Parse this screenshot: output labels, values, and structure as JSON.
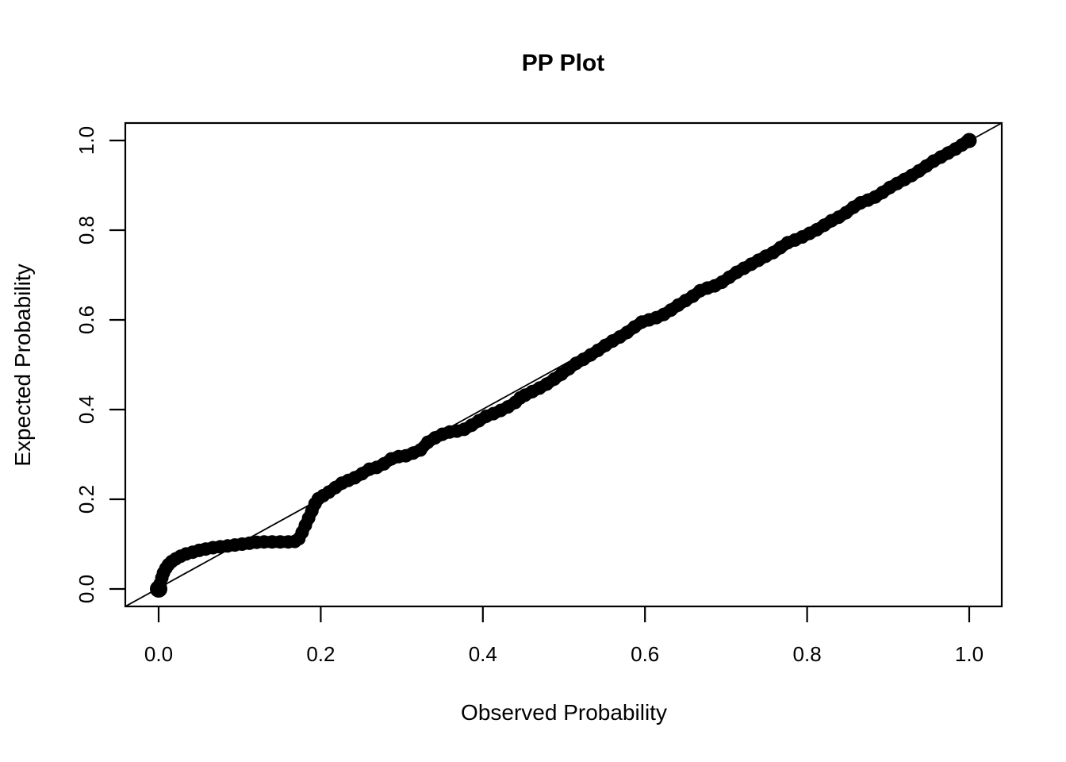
{
  "title": "PP Plot",
  "colors": {
    "foreground": "#000000",
    "background": "#ffffff",
    "point_color": "#000000",
    "reference_line_color": "#000000"
  },
  "chart_data": {
    "type": "scatter",
    "title": "PP Plot",
    "xlabel": "Observed Probability",
    "ylabel": "Expected Probability",
    "xlim": [
      -0.04,
      1.04
    ],
    "ylim": [
      -0.04,
      1.04
    ],
    "grid": false,
    "legend": "none",
    "marker": "filled-circle",
    "x_ticks": [
      0.0,
      0.2,
      0.4,
      0.6,
      0.8,
      1.0
    ],
    "y_ticks": [
      0.0,
      0.2,
      0.4,
      0.6,
      0.8,
      1.0
    ],
    "x_tick_labels": [
      "0.0",
      "0.2",
      "0.4",
      "0.6",
      "0.8",
      "1.0"
    ],
    "y_tick_labels": [
      "0.0",
      "0.2",
      "0.4",
      "0.6",
      "0.8",
      "1.0"
    ],
    "reference_line": {
      "type": "identity",
      "from": [
        0,
        0
      ],
      "to": [
        1,
        1
      ]
    },
    "series": [
      {
        "name": "pp-points",
        "color": "#000000",
        "points": [
          [
            0.0,
            0.0
          ],
          [
            0.002,
            0.012
          ],
          [
            0.004,
            0.025
          ],
          [
            0.006,
            0.036
          ],
          [
            0.009,
            0.046
          ],
          [
            0.012,
            0.054
          ],
          [
            0.016,
            0.061
          ],
          [
            0.021,
            0.067
          ],
          [
            0.027,
            0.073
          ],
          [
            0.034,
            0.078
          ],
          [
            0.042,
            0.082
          ],
          [
            0.05,
            0.086
          ],
          [
            0.058,
            0.089
          ],
          [
            0.067,
            0.092
          ],
          [
            0.076,
            0.094
          ],
          [
            0.085,
            0.096
          ],
          [
            0.094,
            0.098
          ],
          [
            0.103,
            0.1
          ],
          [
            0.112,
            0.102
          ],
          [
            0.121,
            0.104
          ],
          [
            0.13,
            0.105
          ],
          [
            0.14,
            0.105
          ],
          [
            0.15,
            0.105
          ],
          [
            0.16,
            0.105
          ],
          [
            0.168,
            0.106
          ],
          [
            0.173,
            0.112
          ],
          [
            0.177,
            0.126
          ],
          [
            0.181,
            0.142
          ],
          [
            0.185,
            0.158
          ],
          [
            0.189,
            0.174
          ],
          [
            0.193,
            0.19
          ],
          [
            0.197,
            0.201
          ],
          [
            0.203,
            0.208
          ],
          [
            0.21,
            0.216
          ],
          [
            0.218,
            0.226
          ],
          [
            0.226,
            0.236
          ],
          [
            0.234,
            0.242
          ],
          [
            0.242,
            0.248
          ],
          [
            0.251,
            0.257
          ],
          [
            0.26,
            0.267
          ],
          [
            0.269,
            0.271
          ],
          [
            0.278,
            0.279
          ],
          [
            0.287,
            0.29
          ],
          [
            0.296,
            0.295
          ],
          [
            0.305,
            0.297
          ],
          [
            0.314,
            0.303
          ],
          [
            0.323,
            0.31
          ],
          [
            0.332,
            0.327
          ],
          [
            0.341,
            0.337
          ],
          [
            0.35,
            0.345
          ],
          [
            0.359,
            0.35
          ],
          [
            0.368,
            0.352
          ],
          [
            0.377,
            0.356
          ],
          [
            0.386,
            0.365
          ],
          [
            0.395,
            0.375
          ],
          [
            0.404,
            0.385
          ],
          [
            0.413,
            0.391
          ],
          [
            0.422,
            0.398
          ],
          [
            0.431,
            0.406
          ],
          [
            0.44,
            0.416
          ],
          [
            0.446,
            0.426
          ],
          [
            0.452,
            0.432
          ],
          [
            0.461,
            0.44
          ],
          [
            0.47,
            0.448
          ],
          [
            0.479,
            0.457
          ],
          [
            0.488,
            0.468
          ],
          [
            0.497,
            0.479
          ],
          [
            0.506,
            0.491
          ],
          [
            0.515,
            0.503
          ],
          [
            0.524,
            0.512
          ],
          [
            0.533,
            0.522
          ],
          [
            0.542,
            0.532
          ],
          [
            0.551,
            0.543
          ],
          [
            0.56,
            0.553
          ],
          [
            0.569,
            0.562
          ],
          [
            0.578,
            0.572
          ],
          [
            0.587,
            0.584
          ],
          [
            0.596,
            0.595
          ],
          [
            0.605,
            0.6
          ],
          [
            0.614,
            0.605
          ],
          [
            0.623,
            0.612
          ],
          [
            0.632,
            0.622
          ],
          [
            0.641,
            0.633
          ],
          [
            0.65,
            0.643
          ],
          [
            0.659,
            0.653
          ],
          [
            0.668,
            0.665
          ],
          [
            0.677,
            0.671
          ],
          [
            0.686,
            0.676
          ],
          [
            0.695,
            0.684
          ],
          [
            0.704,
            0.695
          ],
          [
            0.713,
            0.706
          ],
          [
            0.722,
            0.715
          ],
          [
            0.731,
            0.724
          ],
          [
            0.74,
            0.733
          ],
          [
            0.749,
            0.742
          ],
          [
            0.758,
            0.75
          ],
          [
            0.767,
            0.761
          ],
          [
            0.776,
            0.772
          ],
          [
            0.785,
            0.778
          ],
          [
            0.794,
            0.785
          ],
          [
            0.803,
            0.793
          ],
          [
            0.812,
            0.801
          ],
          [
            0.821,
            0.811
          ],
          [
            0.83,
            0.821
          ],
          [
            0.839,
            0.829
          ],
          [
            0.848,
            0.839
          ],
          [
            0.857,
            0.851
          ],
          [
            0.866,
            0.861
          ],
          [
            0.875,
            0.867
          ],
          [
            0.884,
            0.874
          ],
          [
            0.893,
            0.884
          ],
          [
            0.902,
            0.895
          ],
          [
            0.911,
            0.904
          ],
          [
            0.92,
            0.913
          ],
          [
            0.929,
            0.922
          ],
          [
            0.938,
            0.932
          ],
          [
            0.947,
            0.943
          ],
          [
            0.956,
            0.954
          ],
          [
            0.965,
            0.963
          ],
          [
            0.974,
            0.972
          ],
          [
            0.983,
            0.981
          ],
          [
            0.991,
            0.99
          ],
          [
            0.997,
            0.997
          ],
          [
            1.0,
            1.0
          ]
        ]
      }
    ]
  }
}
